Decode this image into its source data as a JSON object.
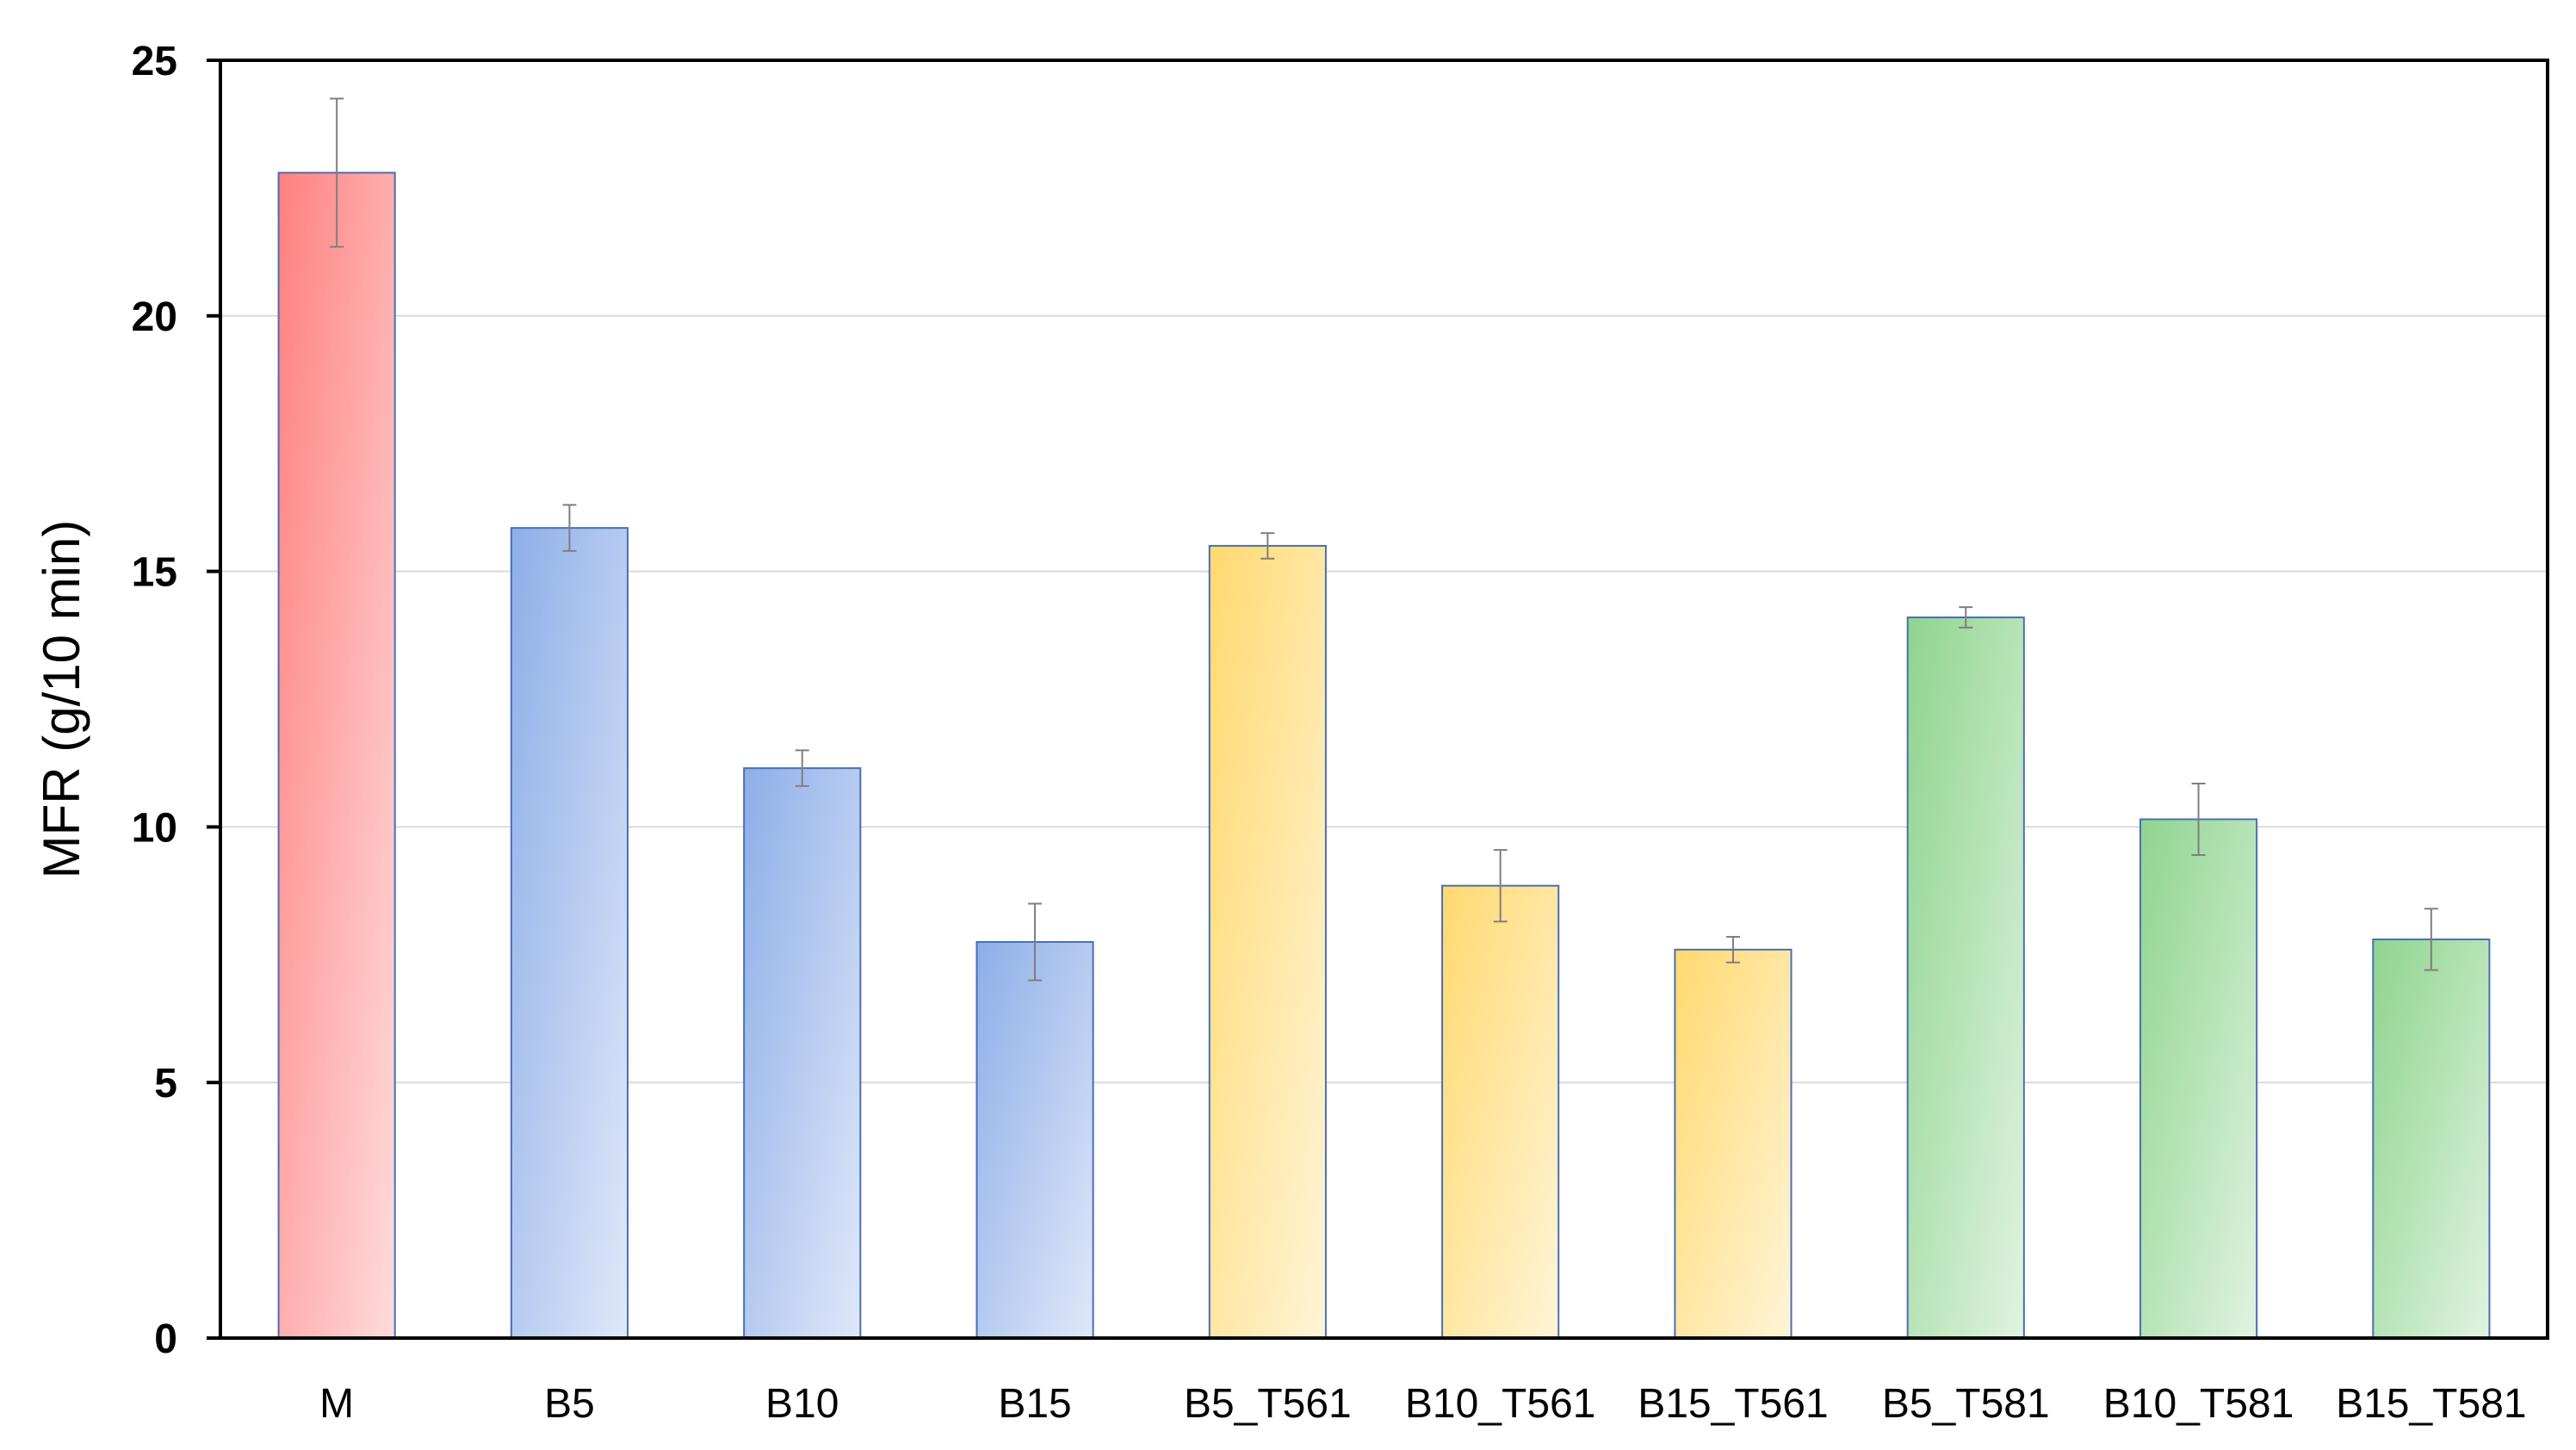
{
  "chart_data": {
    "type": "bar",
    "title": "",
    "xlabel": "",
    "ylabel": "MFR (g/10 min)",
    "ylim": [
      0,
      25
    ],
    "yticks": [
      "0",
      "5",
      "10",
      "15",
      "20",
      "25"
    ],
    "grid": "horizontal",
    "legend": "none",
    "categories": [
      "M",
      "B5",
      "B10",
      "B15",
      "B5_T561",
      "B10_T561",
      "B15_T561",
      "B5_T581",
      "B10_T581",
      "B15_T581"
    ],
    "values": [
      22.8,
      15.85,
      11.15,
      7.75,
      15.5,
      8.85,
      7.6,
      14.1,
      10.15,
      7.8
    ],
    "errors": [
      1.45,
      0.45,
      0.35,
      0.75,
      0.25,
      0.7,
      0.25,
      0.2,
      0.7,
      0.6
    ],
    "bar_colors": [
      "#ff8080",
      "#8eaee8",
      "#8eaee8",
      "#8eaee8",
      "#ffd970",
      "#ffd970",
      "#ffd970",
      "#8fd48f",
      "#8fd48f",
      "#8fd48f"
    ],
    "bar_border_color": "#4a6fb5",
    "error_bar_color": "#7f7f7f"
  }
}
